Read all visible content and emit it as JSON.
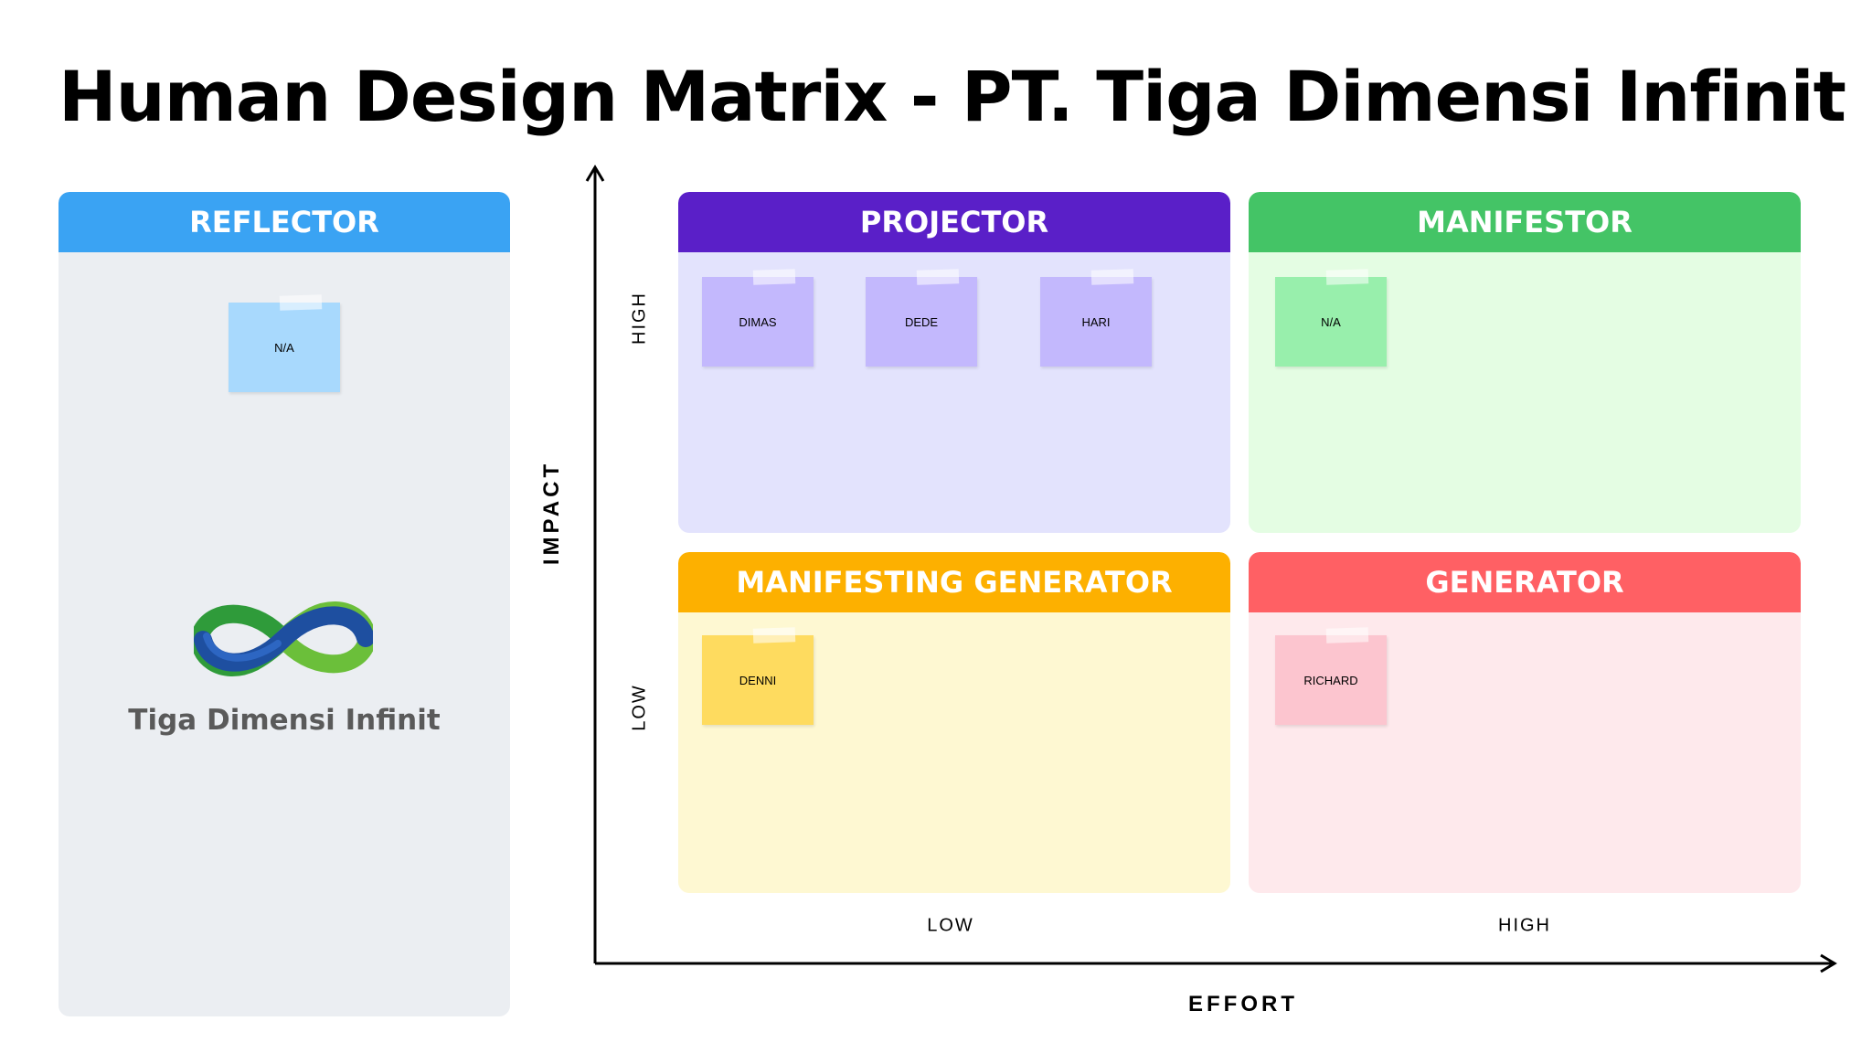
{
  "title": "Human Design Matrix - PT. Tiga Dimensi Infinit",
  "colors": {
    "reflector": "#3aa3f3",
    "projector": "#5a1fc8",
    "manifestor": "#44c466",
    "manifesting_generator": "#fdb000",
    "generator": "#ff6064"
  },
  "reflector": {
    "label": "REFLECTOR",
    "notes": [
      "N/A"
    ],
    "brand_name": "Tiga Dimensi Infinit",
    "logo_icon": "infinity-logo-icon"
  },
  "quadrants": {
    "projector": {
      "label": "PROJECTOR",
      "notes": [
        "DIMAS",
        "DEDE",
        "HARI"
      ]
    },
    "manifestor": {
      "label": "MANIFESTOR",
      "notes": [
        "N/A"
      ]
    },
    "manifesting_generator": {
      "label": "MANIFESTING GENERATOR",
      "notes": [
        "DENNI"
      ]
    },
    "generator": {
      "label": "GENERATOR",
      "notes": [
        "RICHARD"
      ]
    }
  },
  "axes": {
    "y_title": "IMPACT",
    "y_high": "HIGH",
    "y_low": "LOW",
    "x_title": "EFFORT",
    "x_low": "LOW",
    "x_high": "HIGH"
  }
}
